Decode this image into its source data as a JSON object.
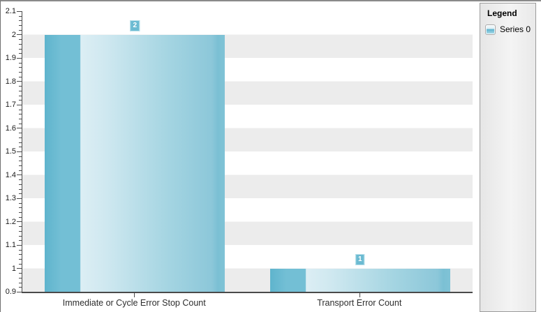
{
  "chart_data": {
    "type": "bar",
    "title": "",
    "categories": [
      "Immediate or Cycle Error Stop Count",
      "Transport Error Count"
    ],
    "series": [
      {
        "name": "Series 0",
        "values": [
          2,
          1
        ]
      }
    ],
    "value_labels": [
      "2",
      "1"
    ],
    "ylim": [
      0.9,
      2.1
    ],
    "ytick_step": 0.1,
    "ytick_labels": [
      "0.9",
      "1",
      "1.1",
      "1.2",
      "1.3",
      "1.4",
      "1.5",
      "1.6",
      "1.7",
      "1.8",
      "1.9",
      "2",
      "2.1"
    ],
    "minor_ticks_per_interval": 4,
    "grid": "horizontal-alternating-bands",
    "band_colors": [
      "#ffffff",
      "#ececec"
    ],
    "legend_position": "right",
    "bar_width_fraction": 0.8
  },
  "legend": {
    "title": "Legend",
    "items": [
      {
        "label": "Series 0"
      }
    ]
  },
  "colors": {
    "window_bg": "#ffffff",
    "frame_top": "#8a8a8a",
    "frame_left": "#6f6f6f",
    "axis_line": "#4a4a4a",
    "stripe": "#ececec",
    "bar_edge": "#5fb4cd",
    "bar_dark": "#73bfd5",
    "bar_light": "#dceef4",
    "bar_light2": "#cfe8f0",
    "bar_mid": "#a5d5e2",
    "bar_mid2": "#8cc7d9",
    "bar_edge2": "#7bc0d4",
    "bar_edge3": "#80c3d6",
    "badge_bg": "#6cbbd2",
    "badge_border": "#b7dfea",
    "badge_text": "#ffffff",
    "panel_border": "#9b9b9b",
    "swatch_top": "#f5fafc",
    "swatch_top2": "#dff0f6",
    "swatch_mid": "#60b5cf",
    "swatch_mid2": "#74bed5",
    "swatch_bot": "#b2dfeb"
  }
}
